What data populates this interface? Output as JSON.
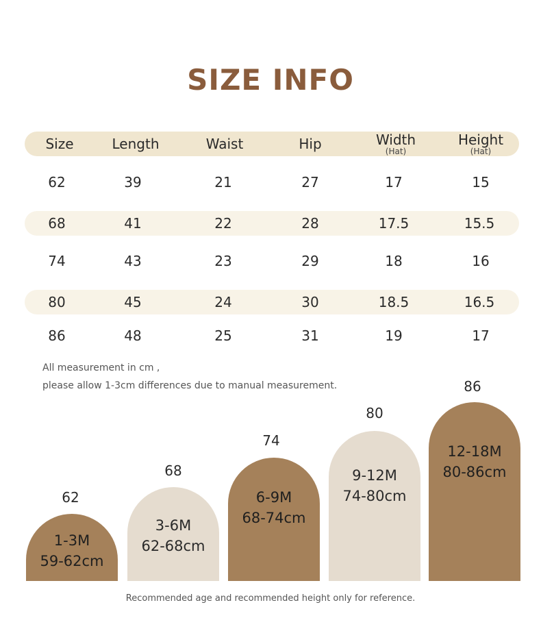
{
  "title": "SIZE INFO",
  "table": {
    "headers": [
      {
        "main": "Size",
        "sub": ""
      },
      {
        "main": "Length",
        "sub": ""
      },
      {
        "main": "Waist",
        "sub": ""
      },
      {
        "main": "Hip",
        "sub": ""
      },
      {
        "main": "Width",
        "sub": "(Hat)"
      },
      {
        "main": "Height",
        "sub": "(Hat)"
      }
    ],
    "rows": [
      [
        "62",
        "39",
        "21",
        "27",
        "17",
        "15"
      ],
      [
        "68",
        "41",
        "22",
        "28",
        "17.5",
        "15.5"
      ],
      [
        "74",
        "43",
        "23",
        "29",
        "18",
        "16"
      ],
      [
        "80",
        "45",
        "24",
        "30",
        "18.5",
        "16.5"
      ],
      [
        "86",
        "48",
        "25",
        "31",
        "19",
        "17"
      ]
    ]
  },
  "notes": {
    "line1": "All measurement in cm ,",
    "line2": "please allow 1-3cm differences due to manual measurement."
  },
  "arches": [
    {
      "size": "62",
      "age": "1-3M",
      "height": "59-62cm",
      "tone": "dark"
    },
    {
      "size": "68",
      "age": "3-6M",
      "height": "62-68cm",
      "tone": "light"
    },
    {
      "size": "74",
      "age": "6-9M",
      "height": "68-74cm",
      "tone": "dark"
    },
    {
      "size": "80",
      "age": "9-12M",
      "height": "74-80cm",
      "tone": "light"
    },
    {
      "size": "86",
      "age": "12-18M",
      "height": "80-86cm",
      "tone": "dark"
    }
  ],
  "footer": "Recommended age and recommended height only for reference.",
  "colors": {
    "title": "#8a5c3c",
    "header_band": "#f0e6cf",
    "row_band": "#f8f3e7",
    "arch_dark": "#a5815a",
    "arch_light": "#e5dccf"
  }
}
